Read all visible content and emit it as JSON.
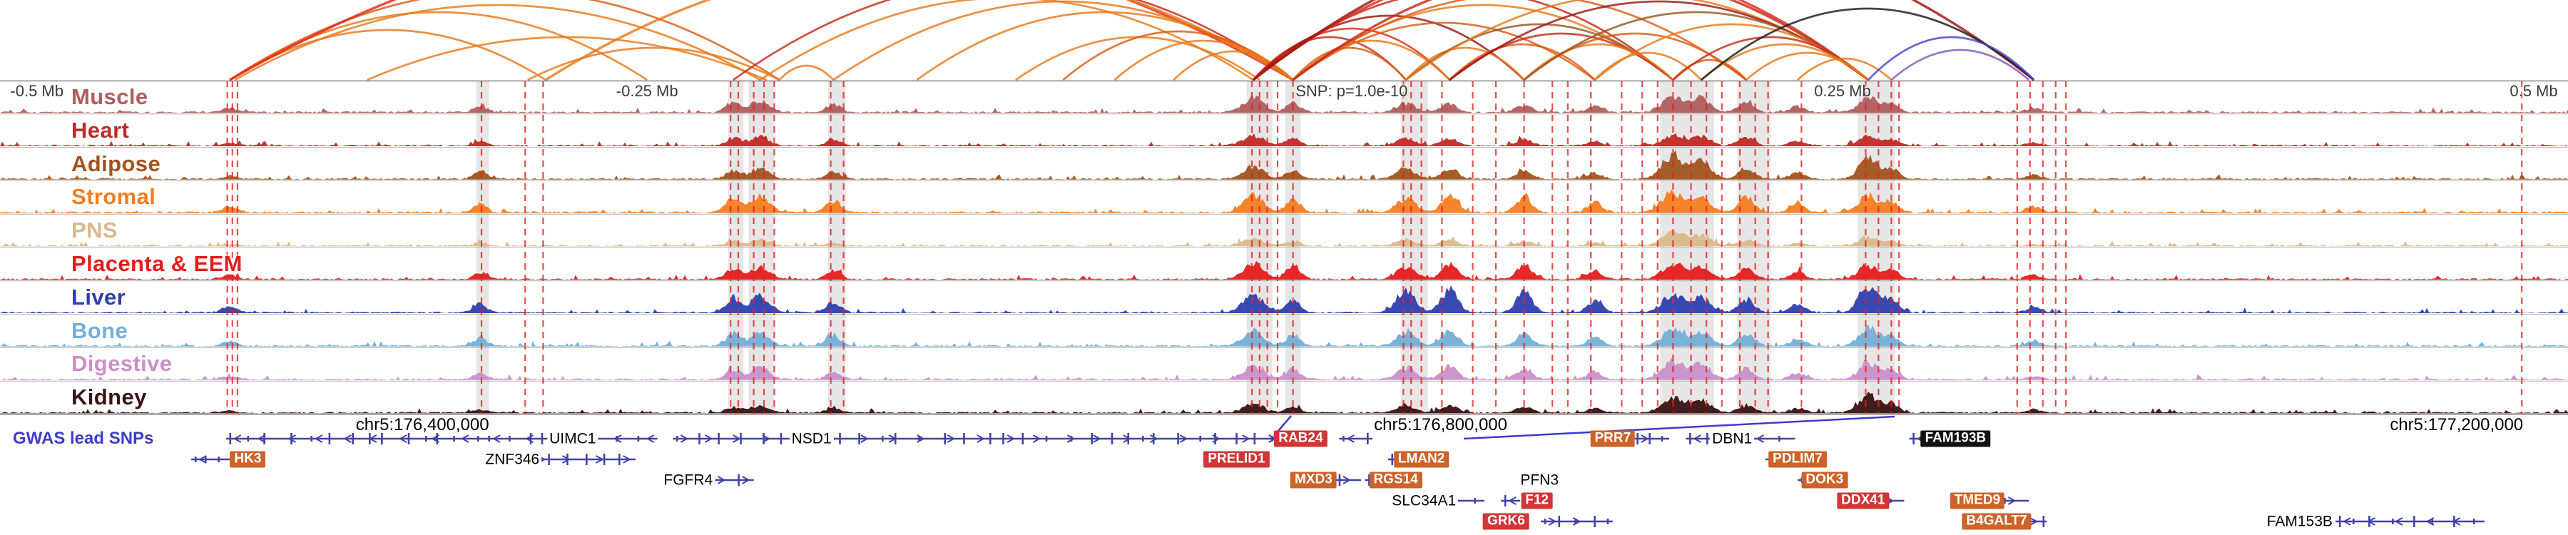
{
  "ruler": {
    "labels": [
      {
        "text": "-0.5 Mb",
        "x": 0.004,
        "anchor": "left"
      },
      {
        "text": "-0.25 Mb",
        "x": 0.252,
        "anchor": "center"
      },
      {
        "text": "SNP: p=1.0e-10",
        "x": 0.5045,
        "anchor": "left"
      },
      {
        "text": "0.25 Mb",
        "x": 0.7175,
        "anchor": "center"
      },
      {
        "text": "0.5 Mb",
        "x": 0.996,
        "anchor": "right"
      }
    ]
  },
  "coordinates": {
    "labels": [
      {
        "text": "chr5:176,400,000",
        "x": 0.1645
      },
      {
        "text": "chr5:176,800,000",
        "x": 0.561
      },
      {
        "text": "chr5:177,200,000",
        "x": 0.9566
      }
    ]
  },
  "gwas": {
    "label": "GWAS lead SNPs",
    "color": "#3c3ccd"
  },
  "chart_data": {
    "type": "genome-browser-tracks",
    "region": {
      "chrom": "chr5",
      "snp_label": "SNP: p=1.0e-10",
      "ruler_span": "-0.5 Mb to 0.5 Mb"
    },
    "tracks": [
      {
        "name": "Muscle",
        "color": "#b05d5d",
        "peaks": [
          0.15,
          0.2,
          0.35,
          0.4,
          0.25,
          0.5,
          0.3,
          0.3,
          0.3,
          0.25,
          0.2,
          0.5,
          0.45,
          0.3,
          0.2,
          0.5,
          0.3,
          0.15
        ]
      },
      {
        "name": "Heart",
        "color": "#bf2a26",
        "peaks": [
          0.1,
          0.15,
          0.25,
          0.3,
          0.2,
          0.35,
          0.25,
          0.25,
          0.25,
          0.2,
          0.15,
          0.35,
          0.3,
          0.25,
          0.15,
          0.3,
          0.2,
          0.1
        ]
      },
      {
        "name": "Adipose",
        "color": "#a0541e",
        "peaks": [
          0.1,
          0.25,
          0.3,
          0.35,
          0.25,
          0.4,
          0.3,
          0.35,
          0.35,
          0.3,
          0.2,
          0.8,
          0.6,
          0.35,
          0.25,
          0.7,
          0.35,
          0.15
        ]
      },
      {
        "name": "Stromal",
        "color": "#f57d1f",
        "peaks": [
          0.2,
          0.3,
          0.5,
          0.55,
          0.4,
          0.55,
          0.45,
          0.45,
          0.6,
          0.5,
          0.35,
          0.65,
          0.5,
          0.5,
          0.3,
          0.6,
          0.35,
          0.2
        ]
      },
      {
        "name": "PNS",
        "color": "#d9b98c",
        "peaks": [
          0.05,
          0.1,
          0.15,
          0.2,
          0.1,
          0.25,
          0.15,
          0.2,
          0.2,
          0.15,
          0.1,
          0.5,
          0.35,
          0.2,
          0.1,
          0.3,
          0.15,
          0.05
        ]
      },
      {
        "name": "Placenta & EEM",
        "color": "#e51c1c",
        "peaks": [
          0.15,
          0.25,
          0.35,
          0.4,
          0.3,
          0.55,
          0.45,
          0.4,
          0.5,
          0.45,
          0.3,
          0.5,
          0.4,
          0.35,
          0.25,
          0.45,
          0.3,
          0.15
        ]
      },
      {
        "name": "Liver",
        "color": "#2f3fae",
        "peaks": [
          0.2,
          0.3,
          0.5,
          0.55,
          0.35,
          0.6,
          0.4,
          0.7,
          0.85,
          0.7,
          0.4,
          0.6,
          0.5,
          0.45,
          0.3,
          0.9,
          0.5,
          0.2
        ]
      },
      {
        "name": "Bone",
        "color": "#76aed6",
        "peaks": [
          0.15,
          0.25,
          0.4,
          0.45,
          0.3,
          0.5,
          0.35,
          0.45,
          0.5,
          0.4,
          0.3,
          0.55,
          0.45,
          0.4,
          0.25,
          0.6,
          0.35,
          0.15
        ]
      },
      {
        "name": "Digestive",
        "color": "#c98fc9",
        "peaks": [
          0.1,
          0.2,
          0.35,
          0.4,
          0.25,
          0.45,
          0.35,
          0.4,
          0.45,
          0.35,
          0.25,
          0.6,
          0.5,
          0.35,
          0.2,
          0.55,
          0.3,
          0.1
        ]
      },
      {
        "name": "Kidney",
        "color": "#3a1212",
        "peaks": [
          0.05,
          0.1,
          0.2,
          0.25,
          0.15,
          0.3,
          0.2,
          0.25,
          0.25,
          0.2,
          0.15,
          0.5,
          0.4,
          0.25,
          0.15,
          0.6,
          0.3,
          0.1
        ]
      }
    ],
    "peak_positions": [
      {
        "f": 0.0895,
        "s": 10
      },
      {
        "f": 0.187,
        "s": 9
      },
      {
        "f": 0.2855,
        "s": 10
      },
      {
        "f": 0.296,
        "s": 13
      },
      {
        "f": 0.3245,
        "s": 10
      },
      {
        "f": 0.488,
        "s": 14
      },
      {
        "f": 0.5035,
        "s": 10
      },
      {
        "f": 0.5475,
        "s": 13
      },
      {
        "f": 0.5645,
        "s": 11
      },
      {
        "f": 0.5935,
        "s": 11
      },
      {
        "f": 0.621,
        "s": 10
      },
      {
        "f": 0.6515,
        "s": 15
      },
      {
        "f": 0.6625,
        "s": 13
      },
      {
        "f": 0.68,
        "s": 11
      },
      {
        "f": 0.7,
        "s": 10
      },
      {
        "f": 0.7275,
        "s": 13
      },
      {
        "f": 0.7365,
        "s": 10
      },
      {
        "f": 0.792,
        "s": 10
      }
    ],
    "snp_lines": [
      0.0885,
      0.0905,
      0.0925,
      0.1875,
      0.2045,
      0.2115,
      0.2845,
      0.2875,
      0.2935,
      0.2975,
      0.3015,
      0.3235,
      0.3285,
      0.4875,
      0.4905,
      0.4935,
      0.4975,
      0.5035,
      0.5465,
      0.5495,
      0.5535,
      0.5615,
      0.5735,
      0.5825,
      0.5935,
      0.6045,
      0.6105,
      0.6195,
      0.6315,
      0.6395,
      0.6455,
      0.6515,
      0.6585,
      0.6645,
      0.6705,
      0.6775,
      0.6835,
      0.6885,
      0.7015,
      0.7265,
      0.7315,
      0.7365,
      0.7395,
      0.7855,
      0.7905,
      0.7955,
      0.8005,
      0.8045,
      0.982
    ],
    "highlights": [
      [
        0.1855,
        0.005
      ],
      [
        0.2835,
        0.006
      ],
      [
        0.2915,
        0.01
      ],
      [
        0.3225,
        0.0068
      ],
      [
        0.4855,
        0.01
      ],
      [
        0.5005,
        0.006
      ],
      [
        0.5455,
        0.0105
      ],
      [
        0.6465,
        0.021
      ],
      [
        0.6765,
        0.013
      ],
      [
        0.7235,
        0.0145
      ]
    ],
    "arc_colors": {
      "o1": "#e87818",
      "o2": "#dd5a10",
      "r1": "#e02818",
      "r2": "#c62818",
      "dr": "#9a1410",
      "br": "#9a5420",
      "k": "#1a1a1a",
      "bl": "#4646c6",
      "pu": "#8658b8"
    },
    "arcs": [
      [
        0.0895,
        0.2125,
        70,
        "o1"
      ],
      [
        0.0895,
        0.252,
        95,
        "o1"
      ],
      [
        0.0895,
        0.3035,
        125,
        "o2"
      ],
      [
        0.0895,
        0.5035,
        215,
        "r1"
      ],
      [
        0.0915,
        0.296,
        105,
        "o1"
      ],
      [
        0.143,
        0.2985,
        60,
        "o1"
      ],
      [
        0.2055,
        0.3035,
        45,
        "o1"
      ],
      [
        0.2125,
        0.5035,
        165,
        "o1"
      ],
      [
        0.2855,
        0.5035,
        140,
        "r2"
      ],
      [
        0.296,
        0.488,
        115,
        "o1"
      ],
      [
        0.3035,
        0.3245,
        20,
        "o1"
      ],
      [
        0.3245,
        0.5035,
        110,
        "o1"
      ],
      [
        0.357,
        0.5035,
        95,
        "o1"
      ],
      [
        0.3955,
        0.4905,
        60,
        "o1"
      ],
      [
        0.414,
        0.5035,
        68,
        "o2"
      ],
      [
        0.434,
        0.5035,
        55,
        "o1"
      ],
      [
        0.457,
        0.5035,
        40,
        "o1"
      ],
      [
        0.488,
        0.5475,
        60,
        "r2"
      ],
      [
        0.488,
        0.5645,
        72,
        "r1"
      ],
      [
        0.488,
        0.5935,
        90,
        "dr"
      ],
      [
        0.488,
        0.6515,
        125,
        "r2"
      ],
      [
        0.488,
        0.7275,
        170,
        "r1"
      ],
      [
        0.488,
        0.792,
        215,
        "dr"
      ],
      [
        0.5035,
        0.5475,
        45,
        "o2"
      ],
      [
        0.5035,
        0.5645,
        55,
        "o1"
      ],
      [
        0.5035,
        0.621,
        80,
        "o2"
      ],
      [
        0.5035,
        0.6515,
        105,
        "o1"
      ],
      [
        0.5035,
        0.68,
        120,
        "o2"
      ],
      [
        0.5035,
        0.7275,
        155,
        "r2"
      ],
      [
        0.5475,
        0.5935,
        45,
        "o1"
      ],
      [
        0.5475,
        0.6515,
        78,
        "br"
      ],
      [
        0.5475,
        0.7275,
        120,
        "o1"
      ],
      [
        0.5645,
        0.621,
        50,
        "o2"
      ],
      [
        0.5645,
        0.6515,
        65,
        "r2"
      ],
      [
        0.5645,
        0.7275,
        110,
        "dr"
      ],
      [
        0.5935,
        0.6515,
        50,
        "o1"
      ],
      [
        0.5935,
        0.68,
        65,
        "o2"
      ],
      [
        0.5935,
        0.7275,
        95,
        "br"
      ],
      [
        0.621,
        0.6625,
        38,
        "o1"
      ],
      [
        0.621,
        0.7275,
        78,
        "o1"
      ],
      [
        0.6515,
        0.68,
        28,
        "o2"
      ],
      [
        0.6515,
        0.7275,
        60,
        "r2"
      ],
      [
        0.6625,
        0.7275,
        50,
        "o1"
      ],
      [
        0.6625,
        0.792,
        100,
        "k"
      ],
      [
        0.68,
        0.7275,
        38,
        "o1"
      ],
      [
        0.7,
        0.7365,
        30,
        "o1"
      ],
      [
        0.7275,
        0.792,
        60,
        "bl"
      ],
      [
        0.7365,
        0.79,
        42,
        "pu"
      ]
    ]
  },
  "genes": {
    "model_color": "#4243a6",
    "box_colors": {
      "red": "#d23535",
      "orange": "#cd6328",
      "black": "#111111"
    },
    "items": [
      {
        "name": "UIMC1",
        "x": 0.223,
        "lane": 0,
        "style": "plain",
        "dir": "L",
        "segs": [
          [
            0.088,
            0.256
          ]
        ]
      },
      {
        "name": "NSD1",
        "x": 0.316,
        "lane": 0,
        "style": "plain",
        "dir": "R",
        "segs": [
          [
            0.262,
            0.503
          ]
        ]
      },
      {
        "name": "RAB24",
        "x": 0.5065,
        "lane": 0,
        "style": "red",
        "dir": "L",
        "segs": [
          [
            0.5215,
            0.5345
          ]
        ]
      },
      {
        "name": "PRR7",
        "x": 0.628,
        "lane": 0,
        "style": "orange",
        "dir": "R",
        "segs": [
          [
            0.636,
            0.65
          ]
        ]
      },
      {
        "name": "DBN1",
        "x": 0.6745,
        "lane": 0,
        "style": "plain",
        "dir": "L",
        "segs": [
          [
            0.6565,
            0.669
          ],
          [
            0.681,
            0.699
          ]
        ]
      },
      {
        "name": "FAM193B",
        "x": 0.7615,
        "lane": 0,
        "style": "black",
        "dir": "L",
        "segs": [
          [
            0.7435,
            0.7575
          ]
        ]
      },
      {
        "name": "HK3",
        "x": 0.0965,
        "lane": 1,
        "style": "orange",
        "dir": "L",
        "segs": [
          [
            0.0745,
            0.0905
          ]
        ]
      },
      {
        "name": "ZNF346",
        "x": 0.1995,
        "lane": 1,
        "style": "plain",
        "dir": "R",
        "segs": [
          [
            0.2065,
            0.2475
          ]
        ]
      },
      {
        "name": "PRELID1",
        "x": 0.4815,
        "lane": 1,
        "style": "red",
        "dir": "L",
        "segs": [
          [
            0.4685,
            0.477
          ]
        ]
      },
      {
        "name": "LMAN2",
        "x": 0.5535,
        "lane": 1,
        "style": "orange",
        "dir": "L",
        "segs": [
          [
            0.5405,
            0.5495
          ]
        ]
      },
      {
        "name": "PDLIM7",
        "x": 0.7,
        "lane": 1,
        "style": "orange",
        "dir": "L",
        "segs": [
          [
            0.6875,
            0.6985
          ]
        ]
      },
      {
        "name": "FGFR4",
        "x": 0.268,
        "lane": 2,
        "style": "plain",
        "dir": "R",
        "segs": [
          [
            0.2765,
            0.2935
          ]
        ]
      },
      {
        "name": "MXD3",
        "x": 0.5115,
        "lane": 2,
        "style": "orange",
        "dir": "R",
        "segs": [
          [
            0.52,
            0.53
          ]
        ]
      },
      {
        "name": "RGS14",
        "x": 0.5435,
        "lane": 2,
        "style": "orange",
        "dir": "L",
        "segs": [
          [
            0.5315,
            0.5405
          ]
        ]
      },
      {
        "name": "PFN3",
        "x": 0.5995,
        "lane": 2,
        "style": "plain",
        "dir": "L",
        "segs": [
          [
            0.5915,
            0.5965
          ]
        ]
      },
      {
        "name": "DOK3",
        "x": 0.7105,
        "lane": 2,
        "style": "orange",
        "dir": "L",
        "segs": [
          [
            0.7,
            0.7085
          ]
        ]
      },
      {
        "name": "SLC34A1",
        "x": 0.5545,
        "lane": 3,
        "style": "plain",
        "dir": "R",
        "segs": [
          [
            0.5625,
            0.578
          ]
        ]
      },
      {
        "name": "F12",
        "x": 0.5985,
        "lane": 3,
        "style": "red",
        "dir": "L",
        "segs": [
          [
            0.5845,
            0.592
          ]
        ]
      },
      {
        "name": "DDX41",
        "x": 0.7255,
        "lane": 3,
        "style": "red",
        "dir": "R",
        "segs": [
          [
            0.7315,
            0.7415
          ]
        ]
      },
      {
        "name": "TMED9",
        "x": 0.77,
        "lane": 3,
        "style": "orange",
        "dir": "R",
        "segs": [
          [
            0.779,
            0.79
          ]
        ]
      },
      {
        "name": "GRK6",
        "x": 0.5865,
        "lane": 4,
        "style": "red",
        "dir": "R",
        "segs": [
          [
            0.6,
            0.628
          ]
        ]
      },
      {
        "name": "B4GALT7",
        "x": 0.7775,
        "lane": 4,
        "style": "orange",
        "dir": "R",
        "segs": [
          [
            0.7875,
            0.797
          ]
        ]
      },
      {
        "name": "FAM153B",
        "x": 0.8955,
        "lane": 4,
        "style": "plain",
        "dir": "L",
        "segs": [
          [
            0.9095,
            0.9675
          ]
        ]
      }
    ]
  }
}
